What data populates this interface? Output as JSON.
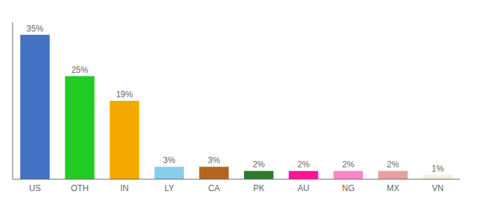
{
  "chart_data": {
    "type": "bar",
    "categories": [
      "US",
      "OTH",
      "IN",
      "LY",
      "CA",
      "PK",
      "AU",
      "NG",
      "MX",
      "VN"
    ],
    "values": [
      35,
      25,
      19,
      3,
      3,
      2,
      2,
      2,
      2,
      1
    ],
    "value_labels": [
      "35%",
      "25%",
      "19%",
      "3%",
      "3%",
      "2%",
      "2%",
      "2%",
      "2%",
      "1%"
    ],
    "colors": [
      "#4472c4",
      "#22cc22",
      "#f5a800",
      "#87ceeb",
      "#b5651d",
      "#2d7a2d",
      "#ff1493",
      "#ff85c8",
      "#e8a0a0",
      "#f5f0dc"
    ],
    "ylim": [
      0,
      38
    ],
    "data_labels": true,
    "tick_labels": "x",
    "grid": false
  }
}
